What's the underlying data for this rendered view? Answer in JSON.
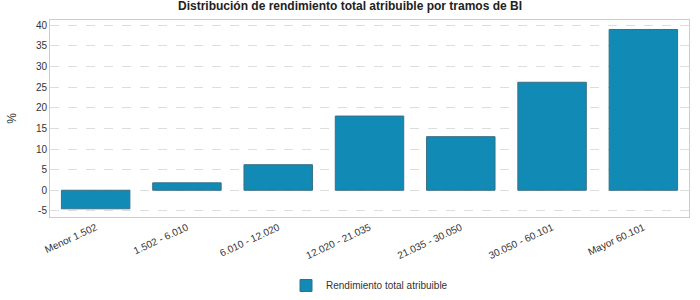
{
  "chart_data": {
    "type": "bar",
    "title": "Distribución de rendimiento total atribuible por tramos de BI",
    "y_label": "%",
    "categories": [
      "Menor 1.502",
      "1.502 - 6.010",
      "6.010 - 12.020",
      "12.020 - 21.035",
      "21.035 - 30.050",
      "30.050 - 60.101",
      "Mayor 60.101"
    ],
    "series": [
      {
        "name": "Rendimiento total atribuible",
        "color": "#118ab5",
        "values": [
          -4.5,
          1.8,
          6.2,
          18.0,
          13.0,
          26.2,
          39.0
        ]
      }
    ],
    "ylim": [
      -6.5,
      41.3
    ],
    "yticks": [
      -5,
      0,
      5,
      10,
      15,
      20,
      25,
      30,
      35,
      40
    ],
    "grid": true,
    "legend": "bottom"
  }
}
